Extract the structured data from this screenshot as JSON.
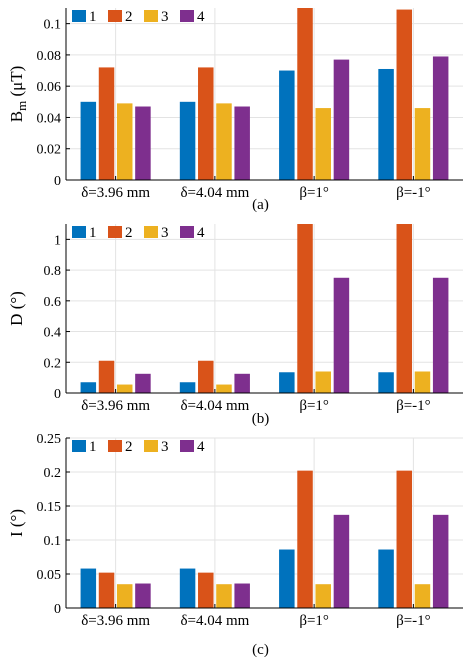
{
  "colors": {
    "series": [
      "#0072BD",
      "#D95319",
      "#EDB120",
      "#7E2F8E"
    ],
    "grid": "#e3e3e3",
    "axis": "#000000"
  },
  "chart_data": [
    {
      "type": "bar",
      "panel_label": "(a)",
      "ylabel": "B",
      "ylabel_subscript": "m",
      "ylabel_suffix": " (μT)",
      "ylim": [
        0,
        0.11
      ],
      "yticks": [
        0,
        0.02,
        0.04,
        0.06,
        0.08,
        0.1
      ],
      "ytick_labels": [
        "0",
        "0.02",
        "0.04",
        "0.06",
        "0.08",
        "0.1"
      ],
      "categories": [
        "δ=3.96 mm",
        "δ=4.04 mm",
        "β=1°",
        "β=-1°"
      ],
      "legend_position": "top-left",
      "grid": true,
      "series": [
        {
          "name": "1",
          "values": [
            0.05,
            0.05,
            0.07,
            0.071
          ]
        },
        {
          "name": "2",
          "values": [
            0.072,
            0.072,
            0.115,
            0.109
          ]
        },
        {
          "name": "3",
          "values": [
            0.049,
            0.049,
            0.046,
            0.046
          ]
        },
        {
          "name": "4",
          "values": [
            0.047,
            0.047,
            0.077,
            0.079
          ]
        }
      ]
    },
    {
      "type": "bar",
      "panel_label": "(b)",
      "ylabel": "D (°)",
      "ylim": [
        0,
        1.1
      ],
      "yticks": [
        0,
        0.2,
        0.4,
        0.6,
        0.8,
        1
      ],
      "ytick_labels": [
        "0",
        "0.2",
        "0.4",
        "0.6",
        "0.8",
        "1"
      ],
      "categories": [
        "δ=3.96 mm",
        "δ=4.04 mm",
        "β=1°",
        "β=-1°"
      ],
      "legend_position": "top-left",
      "grid": true,
      "series": [
        {
          "name": "1",
          "values": [
            0.07,
            0.07,
            0.135,
            0.135
          ]
        },
        {
          "name": "2",
          "values": [
            0.21,
            0.21,
            1.2,
            1.2
          ]
        },
        {
          "name": "3",
          "values": [
            0.055,
            0.055,
            0.14,
            0.14
          ]
        },
        {
          "name": "4",
          "values": [
            0.125,
            0.125,
            0.75,
            0.75
          ]
        }
      ]
    },
    {
      "type": "bar",
      "panel_label": "(c)",
      "ylabel": "I (°)",
      "ylim": [
        0,
        0.25
      ],
      "yticks": [
        0,
        0.05,
        0.1,
        0.15,
        0.2,
        0.25
      ],
      "ytick_labels": [
        "0",
        "0.05",
        "0.1",
        "0.15",
        "0.2",
        "0.25"
      ],
      "categories": [
        "δ=3.96 mm",
        "δ=4.04 mm",
        "β=1°",
        "β=-1°"
      ],
      "legend_position": "top-left",
      "grid": true,
      "series": [
        {
          "name": "1",
          "values": [
            0.058,
            0.058,
            0.086,
            0.086
          ]
        },
        {
          "name": "2",
          "values": [
            0.052,
            0.052,
            0.202,
            0.202
          ]
        },
        {
          "name": "3",
          "values": [
            0.035,
            0.035,
            0.035,
            0.035
          ]
        },
        {
          "name": "4",
          "values": [
            0.036,
            0.036,
            0.137,
            0.137
          ]
        }
      ]
    }
  ]
}
